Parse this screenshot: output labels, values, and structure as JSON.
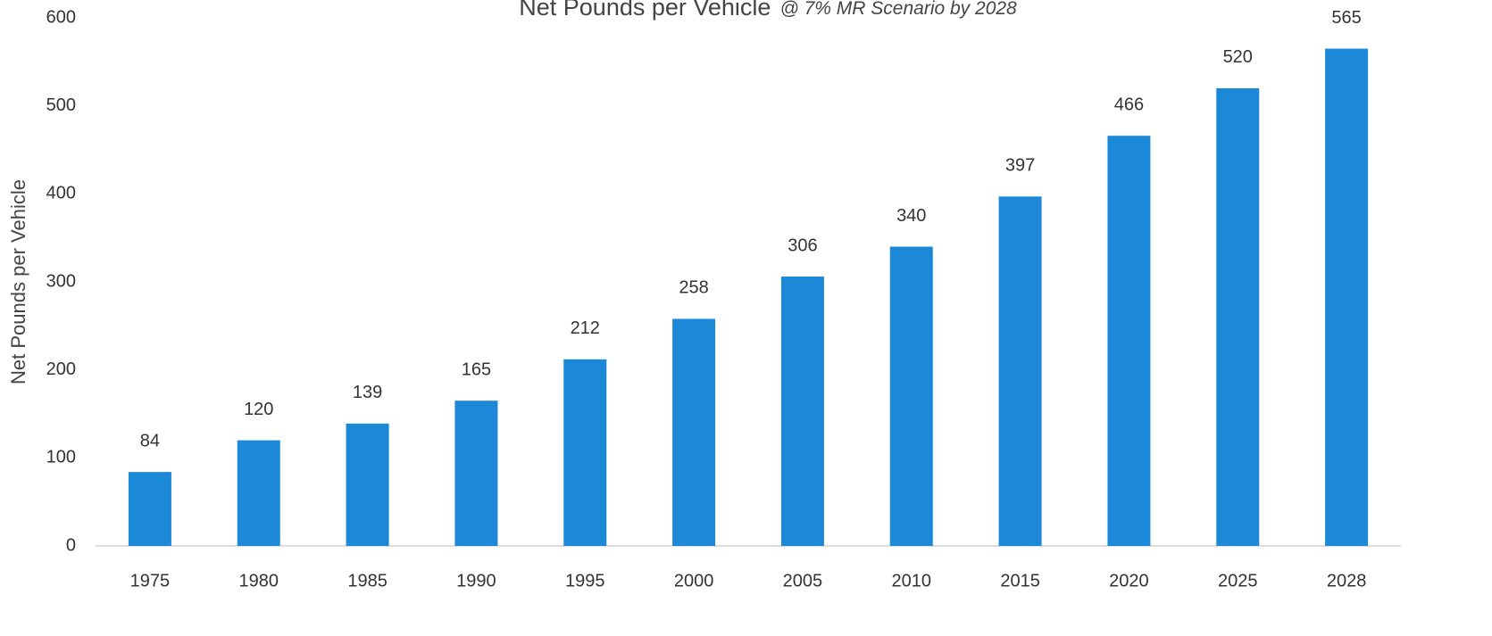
{
  "chart_data": {
    "type": "bar",
    "title": "Net Pounds per Vehicle",
    "subtitle": "@ 7% MR Scenario by 2028",
    "y_label": "Net Pounds per Vehicle",
    "categories": [
      "1975",
      "1980",
      "1985",
      "1990",
      "1995",
      "2000",
      "2005",
      "2010",
      "2015",
      "2020",
      "2025",
      "2028"
    ],
    "values": [
      84,
      120,
      139,
      165,
      212,
      258,
      306,
      340,
      397,
      466,
      520,
      565
    ],
    "color": "#1b88d8",
    "ylim": [
      0,
      600
    ],
    "yticks": [
      0,
      100,
      200,
      300,
      400,
      500,
      600
    ],
    "grid": false
  }
}
